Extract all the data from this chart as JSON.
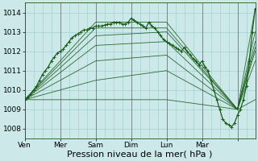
{
  "background_color": "#cce8e8",
  "plot_bg_color": "#cce8e8",
  "grid_color": "#99cccc",
  "line_color": "#1a5c1a",
  "ylim": [
    1007.5,
    1014.5
  ],
  "xlim": [
    0,
    156
  ],
  "yticks": [
    1008,
    1009,
    1010,
    1011,
    1012,
    1013,
    1014
  ],
  "xtick_positions": [
    0,
    24,
    48,
    72,
    96,
    120,
    144
  ],
  "xtick_labels": [
    "Ven",
    "Mer",
    "Sam",
    "Dim",
    "Lun",
    "Mar",
    ""
  ],
  "day_lines": [
    0,
    24,
    48,
    72,
    96,
    120,
    144
  ],
  "ensemble_lines": [
    {
      "x": [
        0,
        48,
        96,
        144,
        156
      ],
      "y": [
        1009.5,
        1013.5,
        1013.5,
        1009.0,
        1014.2
      ]
    },
    {
      "x": [
        0,
        48,
        96,
        144,
        156
      ],
      "y": [
        1009.5,
        1013.2,
        1013.2,
        1009.0,
        1013.0
      ]
    },
    {
      "x": [
        0,
        48,
        96,
        144,
        156
      ],
      "y": [
        1009.5,
        1012.8,
        1013.0,
        1009.0,
        1012.5
      ]
    },
    {
      "x": [
        0,
        48,
        96,
        144,
        156
      ],
      "y": [
        1009.5,
        1012.3,
        1012.5,
        1009.0,
        1012.2
      ]
    },
    {
      "x": [
        0,
        48,
        96,
        144,
        156
      ],
      "y": [
        1009.5,
        1011.5,
        1011.8,
        1009.0,
        1012.0
      ]
    },
    {
      "x": [
        0,
        48,
        96,
        144,
        156
      ],
      "y": [
        1009.5,
        1010.5,
        1011.0,
        1009.0,
        1011.5
      ]
    },
    {
      "x": [
        0,
        48,
        96,
        144,
        156
      ],
      "y": [
        1009.5,
        1009.5,
        1009.5,
        1009.0,
        1009.5
      ]
    }
  ],
  "main_x": [
    0,
    2,
    4,
    6,
    8,
    10,
    12,
    14,
    16,
    18,
    20,
    22,
    24,
    26,
    28,
    30,
    32,
    34,
    36,
    38,
    40,
    42,
    44,
    46,
    48,
    50,
    52,
    54,
    56,
    58,
    60,
    62,
    64,
    66,
    68,
    70,
    72,
    74,
    76,
    78,
    80,
    82,
    84,
    86,
    88,
    90,
    92,
    94,
    96,
    98,
    100,
    102,
    104,
    106,
    108,
    110,
    112,
    114,
    116,
    118,
    120,
    122,
    124,
    126,
    128,
    130,
    132,
    134,
    136,
    138,
    140,
    142,
    144,
    146,
    148,
    150,
    152,
    154,
    156
  ],
  "main_y": [
    1009.5,
    1009.6,
    1009.8,
    1010.0,
    1010.2,
    1010.5,
    1010.8,
    1011.0,
    1011.2,
    1011.5,
    1011.7,
    1011.9,
    1012.0,
    1012.1,
    1012.3,
    1012.5,
    1012.7,
    1012.8,
    1012.9,
    1013.0,
    1013.1,
    1013.1,
    1013.2,
    1013.2,
    1013.3,
    1013.3,
    1013.3,
    1013.35,
    1013.4,
    1013.4,
    1013.5,
    1013.5,
    1013.5,
    1013.4,
    1013.4,
    1013.5,
    1013.7,
    1013.6,
    1013.5,
    1013.4,
    1013.3,
    1013.2,
    1013.5,
    1013.3,
    1013.2,
    1013.0,
    1012.8,
    1012.6,
    1012.5,
    1012.4,
    1012.3,
    1012.2,
    1012.1,
    1012.0,
    1012.2,
    1012.0,
    1011.8,
    1011.6,
    1011.5,
    1011.3,
    1011.5,
    1011.2,
    1011.0,
    1010.5,
    1010.0,
    1009.5,
    1009.0,
    1008.5,
    1008.3,
    1008.2,
    1008.1,
    1008.3,
    1008.7,
    1009.0,
    1009.5,
    1010.2,
    1011.5,
    1013.0,
    1014.2
  ],
  "xlabel": "Pression niveau de la mer( hPa )",
  "xlabel_fontsize": 8,
  "tick_fontsize": 6.5
}
